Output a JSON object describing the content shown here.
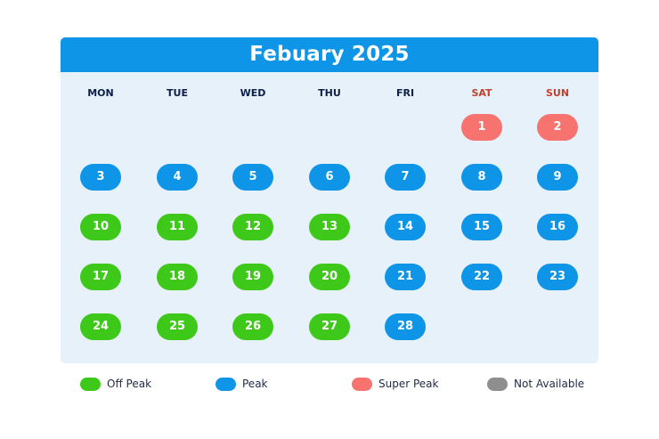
{
  "calendar": {
    "title": "Febuary 2025",
    "weekdays": [
      {
        "label": "MON",
        "weekend": false
      },
      {
        "label": "TUE",
        "weekend": false
      },
      {
        "label": "WED",
        "weekend": false
      },
      {
        "label": "THU",
        "weekend": false
      },
      {
        "label": "FRI",
        "weekend": false
      },
      {
        "label": "SAT",
        "weekend": true
      },
      {
        "label": "SUN",
        "weekend": true
      }
    ],
    "start_weekday_index": 5,
    "days": [
      {
        "day": "1",
        "status": "super-peak"
      },
      {
        "day": "2",
        "status": "super-peak"
      },
      {
        "day": "3",
        "status": "peak"
      },
      {
        "day": "4",
        "status": "peak"
      },
      {
        "day": "5",
        "status": "peak"
      },
      {
        "day": "6",
        "status": "peak"
      },
      {
        "day": "7",
        "status": "peak"
      },
      {
        "day": "8",
        "status": "peak"
      },
      {
        "day": "9",
        "status": "peak"
      },
      {
        "day": "10",
        "status": "off-peak"
      },
      {
        "day": "11",
        "status": "off-peak"
      },
      {
        "day": "12",
        "status": "off-peak"
      },
      {
        "day": "13",
        "status": "off-peak"
      },
      {
        "day": "14",
        "status": "peak"
      },
      {
        "day": "15",
        "status": "peak"
      },
      {
        "day": "16",
        "status": "peak"
      },
      {
        "day": "17",
        "status": "off-peak"
      },
      {
        "day": "18",
        "status": "off-peak"
      },
      {
        "day": "19",
        "status": "off-peak"
      },
      {
        "day": "20",
        "status": "off-peak"
      },
      {
        "day": "21",
        "status": "peak"
      },
      {
        "day": "22",
        "status": "peak"
      },
      {
        "day": "23",
        "status": "peak"
      },
      {
        "day": "24",
        "status": "off-peak"
      },
      {
        "day": "25",
        "status": "off-peak"
      },
      {
        "day": "26",
        "status": "off-peak"
      },
      {
        "day": "27",
        "status": "off-peak"
      },
      {
        "day": "28",
        "status": "peak"
      }
    ]
  },
  "legend": [
    {
      "status": "off-peak",
      "label": "Off Peak"
    },
    {
      "status": "peak",
      "label": "Peak"
    },
    {
      "status": "super-peak",
      "label": "Super Peak"
    },
    {
      "status": "not-available",
      "label": "Not Available"
    }
  ],
  "colors": {
    "header": "#0f95e8",
    "background": "#e6f1fa",
    "weekday_text": "#0d1f4a",
    "weekend_text": "#c2412d",
    "off-peak": "#3ec91a",
    "peak": "#0f95e8",
    "super-peak": "#f77370",
    "not-available": "#8e8e8e"
  }
}
